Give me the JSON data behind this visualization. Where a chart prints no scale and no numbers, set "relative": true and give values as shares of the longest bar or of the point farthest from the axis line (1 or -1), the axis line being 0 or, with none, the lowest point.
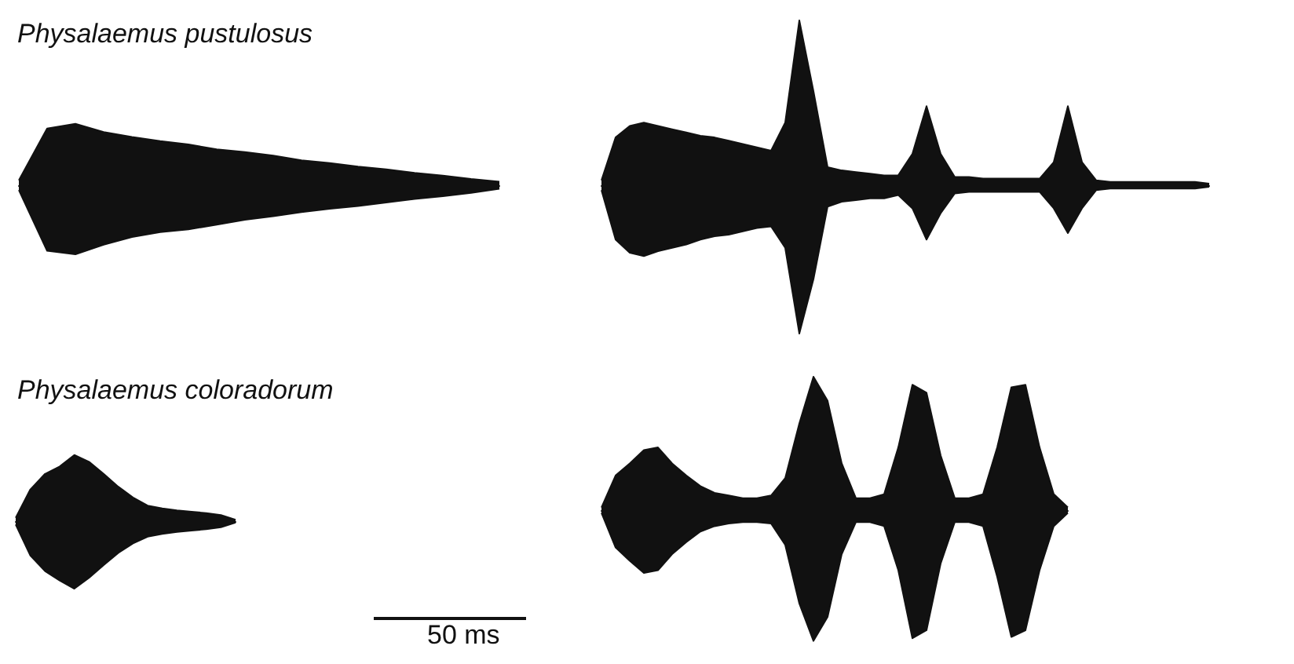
{
  "chart_data": [
    {
      "type": "area",
      "title": "Physalaemus pustulosus",
      "relative": true,
      "categories": [
        null,
        null,
        null,
        null,
        null,
        null,
        null,
        null,
        null,
        null,
        null,
        null,
        null,
        null,
        null,
        null,
        null,
        null
      ],
      "series": [
        {
          "color": "#111111",
          "values": [
            0.07,
            0.82,
            0.89,
            0.77,
            0.7,
            0.64,
            0.59,
            0.52,
            0.48,
            0.43,
            0.36,
            0.32,
            0.27,
            0.23,
            0.18,
            0.14,
            0.09,
            0.05
          ]
        },
        {
          "color": "#111111",
          "values": [
            -0.07,
            -0.95,
            -1,
            -0.86,
            -0.75,
            -0.68,
            -0.64,
            -0.57,
            -0.5,
            -0.45,
            -0.39,
            -0.34,
            -0.3,
            -0.25,
            -0.2,
            -0.16,
            -0.11,
            -0.05
          ]
        }
      ]
    },
    {
      "type": "area",
      "relative": true,
      "categories": [
        null,
        null,
        null,
        null,
        null,
        null,
        null,
        null,
        null,
        null,
        null,
        null,
        null,
        null,
        null,
        null,
        null,
        null,
        null,
        null,
        null,
        null,
        null,
        null,
        null,
        null,
        null,
        null,
        null,
        null,
        null,
        null,
        null,
        null,
        null,
        null,
        null,
        null,
        null,
        null,
        null,
        null,
        null,
        null
      ],
      "series": [
        {
          "color": "#111111",
          "values": [
            0.03,
            0.29,
            0.36,
            0.38,
            0.36,
            0.34,
            0.32,
            0.3,
            0.29,
            0.27,
            0.25,
            0.23,
            0.21,
            0.38,
            1,
            0.57,
            0.11,
            0.09,
            0.08,
            0.07,
            0.06,
            0.06,
            0.19,
            0.48,
            0.19,
            0.05,
            0.05,
            0.04,
            0.04,
            0.04,
            0.04,
            0.04,
            0.14,
            0.48,
            0.14,
            0.03,
            0.02,
            0.02,
            0.02,
            0.02,
            0.02,
            0.02,
            0.02,
            0.01
          ]
        },
        {
          "color": "#111111",
          "values": [
            -0.03,
            -0.33,
            -0.41,
            -0.43,
            -0.4,
            -0.38,
            -0.36,
            -0.33,
            -0.31,
            -0.3,
            -0.28,
            -0.26,
            -0.25,
            -0.38,
            -0.9,
            -0.57,
            -0.13,
            -0.1,
            -0.09,
            -0.08,
            -0.08,
            -0.06,
            -0.14,
            -0.33,
            -0.17,
            -0.05,
            -0.04,
            -0.04,
            -0.04,
            -0.04,
            -0.04,
            -0.04,
            -0.14,
            -0.29,
            -0.14,
            -0.03,
            -0.02,
            -0.02,
            -0.02,
            -0.02,
            -0.02,
            -0.02,
            -0.02,
            -0.01
          ]
        }
      ]
    },
    {
      "type": "area",
      "title": "Physalaemus coloradorum",
      "relative": true,
      "annotations": [
        "50 ms"
      ],
      "categories": [
        null,
        null,
        null,
        null,
        null,
        null,
        null,
        null,
        null,
        null,
        null,
        null,
        null,
        null,
        null,
        null
      ],
      "series": [
        {
          "color": "#111111",
          "values": [
            0.05,
            0.47,
            0.7,
            0.81,
            0.98,
            0.88,
            0.7,
            0.51,
            0.35,
            0.23,
            0.19,
            0.16,
            0.14,
            0.12,
            0.09,
            0.02
          ]
        },
        {
          "color": "#111111",
          "values": [
            -0.05,
            -0.51,
            -0.74,
            -0.88,
            -1,
            -0.84,
            -0.65,
            -0.47,
            -0.33,
            -0.23,
            -0.19,
            -0.16,
            -0.14,
            -0.12,
            -0.09,
            -0.02
          ]
        }
      ]
    },
    {
      "type": "area",
      "relative": true,
      "categories": [
        null,
        null,
        null,
        null,
        null,
        null,
        null,
        null,
        null,
        null,
        null,
        null,
        null,
        null,
        null,
        null,
        null,
        null,
        null,
        null,
        null,
        null,
        null,
        null,
        null,
        null,
        null,
        null,
        null,
        null,
        null,
        null,
        null,
        null
      ],
      "series": [
        {
          "color": "#111111",
          "values": [
            0.02,
            0.26,
            0.35,
            0.45,
            0.47,
            0.35,
            0.26,
            0.18,
            0.13,
            0.11,
            0.09,
            0.09,
            0.11,
            0.24,
            0.65,
            1,
            0.82,
            0.35,
            0.09,
            0.09,
            0.12,
            0.47,
            0.94,
            0.88,
            0.41,
            0.09,
            0.09,
            0.12,
            0.47,
            0.92,
            0.94,
            0.47,
            0.12,
            0.02
          ]
        },
        {
          "color": "#111111",
          "values": [
            -0.02,
            -0.28,
            -0.38,
            -0.47,
            -0.45,
            -0.33,
            -0.24,
            -0.16,
            -0.12,
            -0.1,
            -0.09,
            -0.09,
            -0.1,
            -0.26,
            -0.7,
            -0.98,
            -0.8,
            -0.33,
            -0.09,
            -0.09,
            -0.12,
            -0.45,
            -0.96,
            -0.9,
            -0.4,
            -0.09,
            -0.09,
            -0.12,
            -0.5,
            -0.95,
            -0.9,
            -0.45,
            -0.12,
            -0.02
          ]
        }
      ]
    }
  ]
}
